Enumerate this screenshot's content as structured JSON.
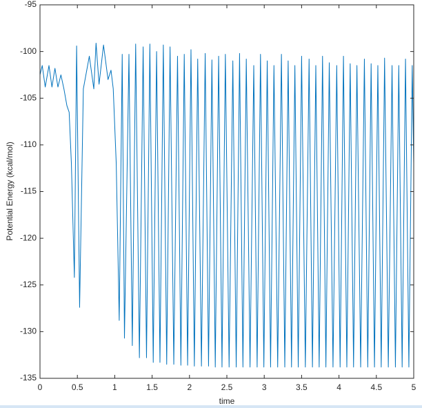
{
  "chart_data": {
    "type": "line",
    "xlabel": "time",
    "ylabel": "Potential Energy (kcal/mol)",
    "xlim": [
      0,
      5
    ],
    "ylim": [
      -135,
      -95
    ],
    "xticks": [
      0,
      0.5,
      1,
      1.5,
      2,
      2.5,
      3,
      3.5,
      4,
      4.5,
      5
    ],
    "yticks": [
      -135,
      -130,
      -125,
      -120,
      -115,
      -110,
      -105,
      -100,
      -95
    ],
    "grid": false,
    "series": [
      {
        "color": "#0072bd",
        "x": [
          0,
          0.03,
          0.07,
          0.12,
          0.16,
          0.2,
          0.24,
          0.28,
          0.32,
          0.36,
          0.39,
          0.42,
          0.46,
          0.49,
          0.53,
          0.58,
          0.66,
          0.72,
          0.75,
          0.79,
          0.85,
          0.91,
          0.95,
          0.98,
          1.02,
          1.06,
          1.1,
          1.13,
          1.19,
          1.235,
          1.28,
          1.33,
          1.38,
          1.425,
          1.47,
          1.515,
          1.56,
          1.605,
          1.65,
          1.695,
          1.74,
          1.79,
          1.84,
          1.885,
          1.93,
          1.975,
          2.02,
          2.065,
          2.11,
          2.16,
          2.21,
          2.255,
          2.3,
          2.345,
          2.39,
          2.435,
          2.48,
          2.53,
          2.58,
          2.625,
          2.67,
          2.715,
          2.76,
          2.81,
          2.86,
          2.905,
          2.95,
          2.995,
          3.04,
          3.085,
          3.13,
          3.18,
          3.23,
          3.275,
          3.32,
          3.365,
          3.41,
          3.455,
          3.5,
          3.55,
          3.6,
          3.645,
          3.69,
          3.735,
          3.78,
          3.825,
          3.87,
          3.92,
          3.97,
          4.015,
          4.06,
          4.105,
          4.15,
          4.195,
          4.24,
          4.29,
          4.34,
          4.385,
          4.43,
          4.475,
          4.52,
          4.565,
          4.61,
          4.66,
          4.71,
          4.755,
          4.8,
          4.845,
          4.89,
          4.935,
          4.98,
          5
        ],
        "values": [
          -102.5,
          -101.5,
          -103.8,
          -101.5,
          -103.8,
          -101.8,
          -103.8,
          -102.5,
          -104,
          -105.8,
          -106.5,
          -112,
          -124.2,
          -99.4,
          -127.4,
          -104,
          -100.5,
          -104,
          -99.1,
          -103.5,
          -99.3,
          -103,
          -102,
          -104,
          -112,
          -128.8,
          -100.3,
          -130.7,
          -100.3,
          -131.5,
          -99.2,
          -132.8,
          -99.5,
          -132.8,
          -99.2,
          -133.3,
          -100,
          -133.3,
          -99.3,
          -133.5,
          -99.5,
          -133.5,
          -100.5,
          -133.6,
          -100.3,
          -133.6,
          -99.8,
          -133.7,
          -100.8,
          -133.7,
          -100.2,
          -133.7,
          -100.9,
          -133.8,
          -100.5,
          -133.8,
          -100.3,
          -133.8,
          -101,
          -133.8,
          -100.2,
          -133.8,
          -100.8,
          -133.8,
          -101.5,
          -133.8,
          -100.3,
          -133.8,
          -101,
          -133.8,
          -101.5,
          -133.8,
          -100.3,
          -133.8,
          -101,
          -133.8,
          -101.5,
          -133.8,
          -100.5,
          -133.8,
          -100.8,
          -133.8,
          -101.5,
          -133.8,
          -100.5,
          -133.8,
          -101.2,
          -133.8,
          -101.5,
          -133.8,
          -100.5,
          -133.8,
          -101.3,
          -133.8,
          -101.5,
          -133.8,
          -100.8,
          -133.8,
          -101.3,
          -133.8,
          -101.5,
          -133.8,
          -100.7,
          -133.8,
          -101.5,
          -133.8,
          -101.5,
          -133.8,
          -100.8,
          -133.8,
          -101.5,
          -112
        ]
      }
    ]
  }
}
